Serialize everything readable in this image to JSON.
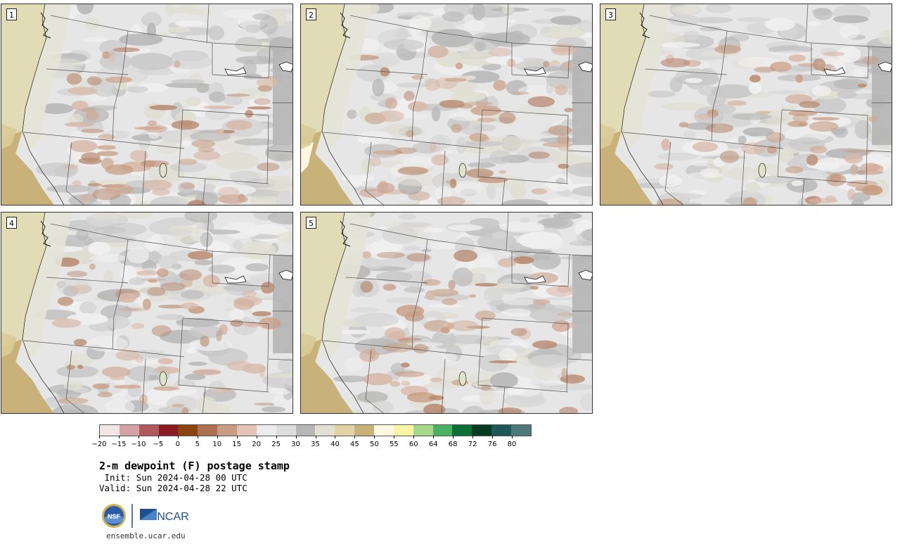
{
  "panels": [
    {
      "label": "1"
    },
    {
      "label": "2"
    },
    {
      "label": "3"
    },
    {
      "label": "4"
    },
    {
      "label": "5"
    }
  ],
  "colorbar": {
    "colors": [
      "#f2e6e4",
      "#d4a3a6",
      "#b0585c",
      "#8b1a23",
      "#8a4410",
      "#ad7150",
      "#c79c82",
      "#e2c3b6",
      "#ececec",
      "#dddddd",
      "#b7b7b7",
      "#e2e0d2",
      "#e3d2a4",
      "#c9b27a",
      "#fff8de",
      "#f9f5a6",
      "#a8d98a",
      "#4bb062",
      "#0a7038",
      "#033a22",
      "#1e5856",
      "#4e7a7c"
    ],
    "ticks": [
      "−20",
      "−15",
      "−10",
      "−5",
      "0",
      "5",
      "10",
      "15",
      "20",
      "25",
      "30",
      "35",
      "40",
      "45",
      "50",
      "55",
      "60",
      "64",
      "68",
      "72",
      "76",
      "80"
    ]
  },
  "title": "2-m dewpoint (F) postage stamp",
  "init": " Init: Sun 2024-04-28 00 UTC",
  "valid": "Valid: Sun 2024-04-28 22 UTC",
  "logos": {
    "nsf": "NSF",
    "ncar": "NCAR"
  },
  "site": "ensemble.ucar.edu"
}
